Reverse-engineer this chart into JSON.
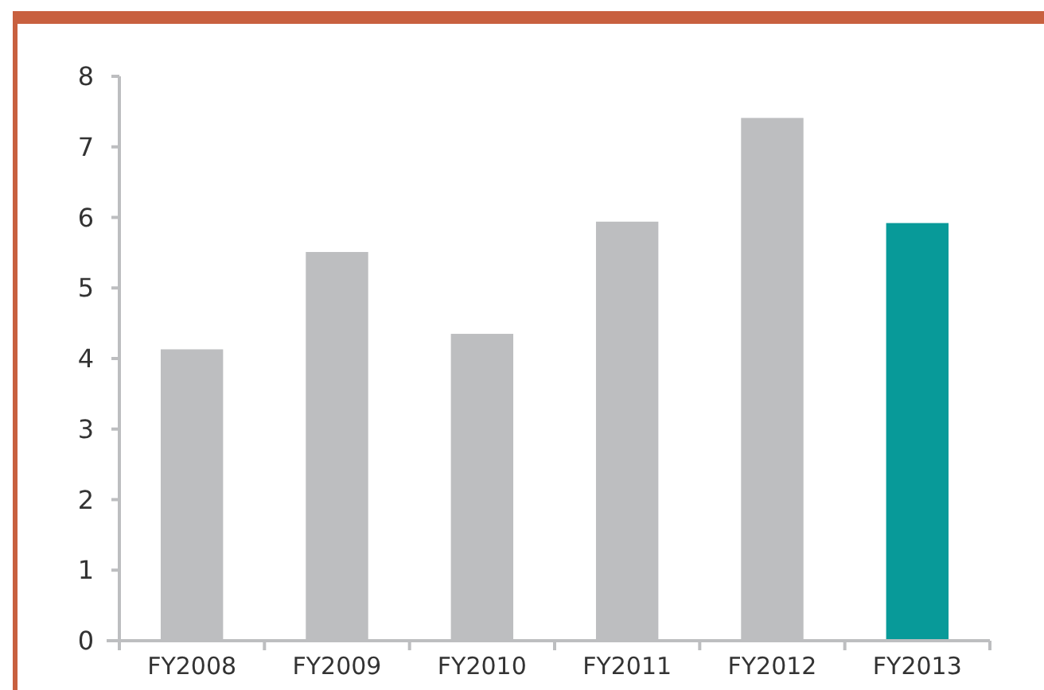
{
  "chart_data": {
    "type": "bar",
    "categories": [
      "FY2008",
      "FY2009",
      "FY2010",
      "FY2011",
      "FY2012",
      "FY2013"
    ],
    "values": [
      4.13,
      5.51,
      4.35,
      5.94,
      7.41,
      5.92
    ],
    "colors": [
      "#bdbec0",
      "#bdbec0",
      "#bdbec0",
      "#bdbec0",
      "#bdbec0",
      "#089a99"
    ],
    "ylim": [
      0,
      8
    ],
    "yticks": [
      0,
      1,
      2,
      3,
      4,
      5,
      6,
      7,
      8
    ],
    "grid": false
  }
}
